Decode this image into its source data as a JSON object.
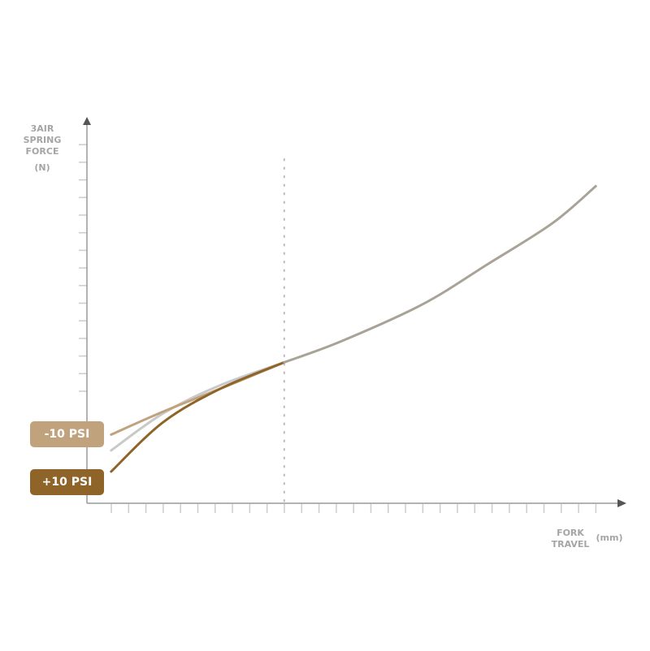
{
  "chart_data": {
    "type": "line",
    "title": "",
    "ylabel_lines": [
      "3AIR",
      "SPRING",
      "FORCE"
    ],
    "yunit": "(N)",
    "xlabel_lines": [
      "FORK",
      "TRAVEL"
    ],
    "xunit": "(mm)",
    "xlim": [
      0,
      31
    ],
    "ylim": [
      0,
      21.5
    ],
    "x_ticks_count": 29,
    "y_ticks_count": 15,
    "grid": false,
    "reference_line_x": 11.4,
    "colors": {
      "minus10": "#c0a37d",
      "plus10": "#8f6429",
      "baseline": "#c9c9c9",
      "shared": "#a9a397",
      "axis": "#555555",
      "tick": "#cccccc"
    },
    "series": [
      {
        "key": "baseline",
        "x": [
          1.4,
          4.4,
          7.7,
          11.4
        ],
        "y": [
          3.0,
          5.1,
          6.7,
          8.0
        ]
      },
      {
        "key": "minus10",
        "name": "-10 PSI",
        "x": [
          1.4,
          4.4,
          7.7,
          11.4
        ],
        "y": [
          3.9,
          5.2,
          6.5,
          8.0
        ]
      },
      {
        "key": "plus10",
        "name": "+10 PSI",
        "x": [
          1.4,
          4.4,
          7.7,
          11.4
        ],
        "y": [
          1.8,
          4.6,
          6.5,
          8.0
        ]
      },
      {
        "key": "shared",
        "x": [
          11.4,
          14.7,
          19.4,
          23.2,
          26.9,
          29.4
        ],
        "y": [
          8.0,
          9.2,
          11.3,
          13.6,
          15.9,
          18.0
        ]
      }
    ],
    "legend": [
      {
        "label": "-10 PSI",
        "color": "#c0a37d"
      },
      {
        "label": "+10 PSI",
        "color": "#8f6429"
      }
    ]
  }
}
